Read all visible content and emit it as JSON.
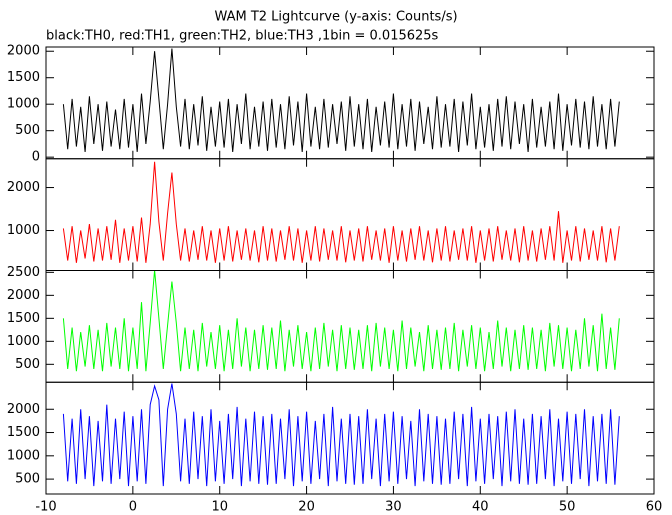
{
  "chart_data": [
    {
      "type": "line",
      "title": "WAM T2 Lightcurve (y-axis: Counts/s)",
      "subtitle": "black:TH0, red:TH1, green:TH2, blue:TH3 ,1bin = 0.015625s",
      "xlim": [
        -10,
        60
      ],
      "ylim": [
        -30,
        2080
      ],
      "yticks": [
        0,
        500,
        1000,
        1500,
        2000
      ],
      "x": [
        -8,
        -7.5,
        -7,
        -6.5,
        -6,
        -5.5,
        -5,
        -4.5,
        -4,
        -3.5,
        -3,
        -2.5,
        -2,
        -1.5,
        -1,
        -0.5,
        0,
        0.5,
        1,
        1.5,
        2,
        2.5,
        3,
        3.5,
        4,
        4.5,
        5,
        5.5,
        6,
        6.5,
        7,
        7.5,
        8,
        8.5,
        9,
        9.5,
        10,
        10.5,
        11,
        11.5,
        12,
        12.5,
        13,
        13.5,
        14,
        14.5,
        15,
        15.5,
        16,
        16.5,
        17,
        17.5,
        18,
        18.5,
        19,
        19.5,
        20,
        20.5,
        21,
        21.5,
        22,
        22.5,
        23,
        23.5,
        24,
        24.5,
        25,
        25.5,
        26,
        26.5,
        27,
        27.5,
        28,
        28.5,
        29,
        29.5,
        30,
        30.5,
        31,
        31.5,
        32,
        32.5,
        33,
        33.5,
        34,
        34.5,
        35,
        35.5,
        36,
        36.5,
        37,
        37.5,
        38,
        38.5,
        39,
        39.5,
        40,
        40.5,
        41,
        41.5,
        42,
        42.5,
        43,
        43.5,
        44,
        44.5,
        45,
        45.5,
        46,
        46.5,
        47,
        47.5,
        48,
        48.5,
        49,
        49.5,
        50,
        50.5,
        51,
        51.5,
        52,
        52.5,
        53,
        53.5,
        54,
        54.5,
        55,
        55.5,
        56
      ],
      "series": [
        {
          "color": "#000000",
          "values": [
            1000,
            150,
            1100,
            200,
            950,
            100,
            1150,
            250,
            1000,
            120,
            1050,
            200,
            900,
            150,
            1100,
            180,
            1000,
            100,
            1200,
            250,
            1050,
            2000,
            1100,
            150,
            1000,
            2050,
            950,
            200,
            1100,
            150,
            1000,
            220,
            1150,
            120,
            950,
            200,
            1050,
            180,
            1100,
            100,
            1000,
            250,
            1200,
            150,
            950,
            200,
            1050,
            120,
            1100,
            180,
            1000,
            150,
            1150,
            220,
            1050,
            100,
            1200,
            200,
            950,
            150,
            1100,
            180,
            1000,
            250,
            1050,
            120,
            1150,
            200,
            1000,
            150,
            1100,
            100,
            950,
            220,
            1050,
            180,
            1200,
            150,
            1000,
            200,
            1100,
            120,
            1050,
            250,
            950,
            150,
            1150,
            180,
            1000,
            200,
            1100,
            100,
            1050,
            220,
            1200,
            150,
            950,
            180,
            1000,
            120,
            1100,
            200,
            1150,
            150,
            1050,
            250,
            1000,
            100,
            1100,
            180,
            950,
            200,
            1050,
            150,
            1200,
            120,
            1000,
            220,
            1100,
            180,
            1050,
            150,
            1150,
            200,
            1000,
            150,
            1100,
            200,
            1050
          ]
        }
      ]
    },
    {
      "type": "line",
      "xlim": [
        -10,
        60
      ],
      "ylim": [
        70,
        2670
      ],
      "yticks": [
        1000,
        2000
      ],
      "x": [
        -8,
        -7.5,
        -7,
        -6.5,
        -6,
        -5.5,
        -5,
        -4.5,
        -4,
        -3.5,
        -3,
        -2.5,
        -2,
        -1.5,
        -1,
        -0.5,
        0,
        0.5,
        1,
        1.5,
        2,
        2.5,
        3,
        3.5,
        4,
        4.5,
        5,
        5.5,
        6,
        6.5,
        7,
        7.5,
        8,
        8.5,
        9,
        9.5,
        10,
        10.5,
        11,
        11.5,
        12,
        12.5,
        13,
        13.5,
        14,
        14.5,
        15,
        15.5,
        16,
        16.5,
        17,
        17.5,
        18,
        18.5,
        19,
        19.5,
        20,
        20.5,
        21,
        21.5,
        22,
        22.5,
        23,
        23.5,
        24,
        24.5,
        25,
        25.5,
        26,
        26.5,
        27,
        27.5,
        28,
        28.5,
        29,
        29.5,
        30,
        30.5,
        31,
        31.5,
        32,
        32.5,
        33,
        33.5,
        34,
        34.5,
        35,
        35.5,
        36,
        36.5,
        37,
        37.5,
        38,
        38.5,
        39,
        39.5,
        40,
        40.5,
        41,
        41.5,
        42,
        42.5,
        43,
        43.5,
        44,
        44.5,
        45,
        45.5,
        46,
        46.5,
        47,
        47.5,
        48,
        48.5,
        49,
        49.5,
        50,
        50.5,
        51,
        51.5,
        52,
        52.5,
        53,
        53.5,
        54,
        54.5,
        55,
        55.5,
        56
      ],
      "series": [
        {
          "color": "#ff0000",
          "values": [
            1050,
            300,
            1100,
            250,
            1000,
            350,
            1150,
            280,
            1050,
            300,
            1100,
            320,
            1250,
            250,
            1050,
            300,
            1100,
            280,
            1300,
            250,
            1150,
            2600,
            1200,
            300,
            1400,
            2350,
            1150,
            300,
            1050,
            280,
            1000,
            320,
            1100,
            300,
            1000,
            250,
            1050,
            300,
            1100,
            280,
            1000,
            320,
            1050,
            300,
            1000,
            260,
            1100,
            300,
            1050,
            280,
            1000,
            320,
            1100,
            300,
            1050,
            250,
            1000,
            300,
            1100,
            280,
            1050,
            320,
            1000,
            300,
            1100,
            260,
            1000,
            300,
            1050,
            280,
            1100,
            320,
            1000,
            300,
            1050,
            250,
            1100,
            300,
            1000,
            280,
            1050,
            320,
            1100,
            300,
            1000,
            260,
            1050,
            300,
            1100,
            280,
            1000,
            320,
            1050,
            300,
            1100,
            250,
            1000,
            300,
            1050,
            280,
            1100,
            320,
            1000,
            300,
            1050,
            260,
            1100,
            300,
            1000,
            280,
            1050,
            320,
            1100,
            300,
            1450,
            250,
            1000,
            300,
            1100,
            280,
            1050,
            320,
            1000,
            300,
            1100,
            260,
            1050,
            300,
            1100
          ]
        }
      ]
    },
    {
      "type": "line",
      "xlim": [
        -10,
        60
      ],
      "ylim": [
        110,
        2540
      ],
      "yticks": [
        500,
        1000,
        1500,
        2000,
        2500
      ],
      "x": [
        -8,
        -7.5,
        -7,
        -6.5,
        -6,
        -5.5,
        -5,
        -4.5,
        -4,
        -3.5,
        -3,
        -2.5,
        -2,
        -1.5,
        -1,
        -0.5,
        0,
        0.5,
        1,
        1.5,
        2,
        2.5,
        3,
        3.5,
        4,
        4.5,
        5,
        5.5,
        6,
        6.5,
        7,
        7.5,
        8,
        8.5,
        9,
        9.5,
        10,
        10.5,
        11,
        11.5,
        12,
        12.5,
        13,
        13.5,
        14,
        14.5,
        15,
        15.5,
        16,
        16.5,
        17,
        17.5,
        18,
        18.5,
        19,
        19.5,
        20,
        20.5,
        21,
        21.5,
        22,
        22.5,
        23,
        23.5,
        24,
        24.5,
        25,
        25.5,
        26,
        26.5,
        27,
        27.5,
        28,
        28.5,
        29,
        29.5,
        30,
        30.5,
        31,
        31.5,
        32,
        32.5,
        33,
        33.5,
        34,
        34.5,
        35,
        35.5,
        36,
        36.5,
        37,
        37.5,
        38,
        38.5,
        39,
        39.5,
        40,
        40.5,
        41,
        41.5,
        42,
        42.5,
        43,
        43.5,
        44,
        44.5,
        45,
        45.5,
        46,
        46.5,
        47,
        47.5,
        48,
        48.5,
        49,
        49.5,
        50,
        50.5,
        51,
        51.5,
        52,
        52.5,
        53,
        53.5,
        54,
        54.5,
        55,
        55.5,
        56
      ],
      "series": [
        {
          "color": "#00ff00",
          "values": [
            1500,
            400,
            1300,
            350,
            1200,
            450,
            1350,
            400,
            1250,
            350,
            1400,
            450,
            1300,
            400,
            1500,
            350,
            1300,
            400,
            1850,
            350,
            1400,
            2550,
            1500,
            400,
            1350,
            2300,
            1400,
            350,
            1300,
            400,
            1250,
            350,
            1400,
            450,
            1200,
            400,
            1350,
            350,
            1250,
            400,
            1500,
            450,
            1300,
            350,
            1250,
            400,
            1350,
            380,
            1300,
            400,
            1450,
            350,
            1250,
            450,
            1350,
            400,
            1200,
            350,
            1300,
            400,
            1400,
            450,
            1250,
            350,
            1350,
            400,
            1300,
            380,
            1250,
            400,
            1350,
            350,
            1400,
            450,
            1300,
            400,
            1250,
            350,
            1450,
            400,
            1300,
            450,
            1200,
            350,
            1350,
            400,
            1250,
            380,
            1300,
            400,
            1400,
            350,
            1250,
            450,
            1350,
            400,
            1300,
            350,
            1200,
            400,
            1450,
            450,
            1300,
            350,
            1250,
            400,
            1350,
            380,
            1300,
            400,
            1250,
            350,
            1400,
            450,
            1350,
            400,
            1300,
            350,
            1250,
            400,
            1500,
            450,
            1350,
            350,
            1600,
            400,
            1300,
            380,
            1500
          ]
        }
      ]
    },
    {
      "type": "line",
      "xlim": [
        -10,
        60
      ],
      "ylim": [
        180,
        2580
      ],
      "yticks": [
        500,
        1000,
        1500,
        2000
      ],
      "xticks": [
        -10,
        0,
        10,
        20,
        30,
        40,
        50,
        60
      ],
      "x": [
        -8,
        -7.5,
        -7,
        -6.5,
        -6,
        -5.5,
        -5,
        -4.5,
        -4,
        -3.5,
        -3,
        -2.5,
        -2,
        -1.5,
        -1,
        -0.5,
        0,
        0.5,
        1,
        1.5,
        2,
        2.5,
        3,
        3.5,
        4,
        4.5,
        5,
        5.5,
        6,
        6.5,
        7,
        7.5,
        8,
        8.5,
        9,
        9.5,
        10,
        10.5,
        11,
        11.5,
        12,
        12.5,
        13,
        13.5,
        14,
        14.5,
        15,
        15.5,
        16,
        16.5,
        17,
        17.5,
        18,
        18.5,
        19,
        19.5,
        20,
        20.5,
        21,
        21.5,
        22,
        22.5,
        23,
        23.5,
        24,
        24.5,
        25,
        25.5,
        26,
        26.5,
        27,
        27.5,
        28,
        28.5,
        29,
        29.5,
        30,
        30.5,
        31,
        31.5,
        32,
        32.5,
        33,
        33.5,
        34,
        34.5,
        35,
        35.5,
        36,
        36.5,
        37,
        37.5,
        38,
        38.5,
        39,
        39.5,
        40,
        40.5,
        41,
        41.5,
        42,
        42.5,
        43,
        43.5,
        44,
        44.5,
        45,
        45.5,
        46,
        46.5,
        47,
        47.5,
        48,
        48.5,
        49,
        49.5,
        50,
        50.5,
        51,
        51.5,
        52,
        52.5,
        53,
        53.5,
        54,
        54.5,
        55,
        55.5,
        56
      ],
      "series": [
        {
          "color": "#0000ff",
          "values": [
            1900,
            450,
            1800,
            400,
            2000,
            500,
            1850,
            350,
            1750,
            450,
            2100,
            400,
            1800,
            500,
            1950,
            350,
            1850,
            450,
            2000,
            400,
            2100,
            2500,
            2200,
            350,
            2000,
            2550,
            1900,
            450,
            1800,
            400,
            1950,
            500,
            1850,
            350,
            2000,
            450,
            1750,
            400,
            1900,
            500,
            2050,
            350,
            1800,
            450,
            1950,
            400,
            1850,
            380,
            1900,
            400,
            1800,
            500,
            2000,
            350,
            1850,
            450,
            1950,
            400,
            1750,
            500,
            1900,
            350,
            2050,
            450,
            1800,
            400,
            1900,
            380,
            1850,
            400,
            2000,
            500,
            1800,
            350,
            1900,
            450,
            1950,
            400,
            1850,
            500,
            1750,
            350,
            2000,
            450,
            1900,
            400,
            1850,
            380,
            1800,
            400,
            1950,
            500,
            1900,
            350,
            2050,
            450,
            1800,
            400,
            1900,
            500,
            1850,
            350,
            1950,
            450,
            2000,
            400,
            1800,
            380,
            1900,
            400,
            1850,
            500,
            2000,
            350,
            1800,
            450,
            1950,
            400,
            1900,
            500,
            2000,
            350,
            1850,
            450,
            1900,
            400,
            2000,
            380,
            1850
          ]
        }
      ]
    }
  ]
}
